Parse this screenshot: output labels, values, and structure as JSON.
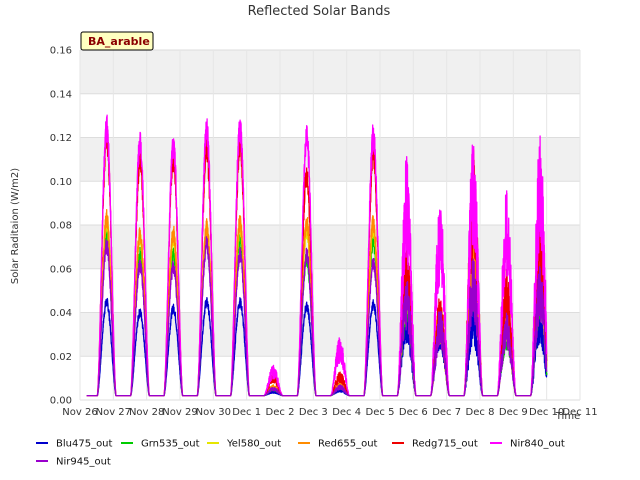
{
  "chart_data": {
    "type": "line",
    "title": "Reflected Solar Bands",
    "ylabel": "Solar Raditaion (W/m2)",
    "xlabel": "Time",
    "site_label": "BA_arable",
    "xlim": [
      0,
      15
    ],
    "ylim": [
      0,
      0.16
    ],
    "yticks": [
      0.0,
      0.02,
      0.04,
      0.06,
      0.08,
      0.1,
      0.12,
      0.14,
      0.16
    ],
    "xtick_labels": [
      "Nov 26",
      "Nov 27",
      "Nov 28",
      "Nov 29",
      "Nov 30",
      "Dec 1",
      "Dec 2",
      "Dec 3",
      "Dec 4",
      "Dec 5",
      "Dec 6",
      "Dec 7",
      "Dec 8",
      "Dec 9",
      "Dec 10",
      "Dec 11"
    ],
    "grid": true,
    "legend_position": "bottom",
    "baseline": 0.002,
    "day_centers": [
      0.8,
      1.8,
      2.8,
      3.8,
      4.8,
      5.8,
      6.8,
      7.8,
      8.8,
      9.8,
      10.8,
      11.8,
      12.8,
      13.8
    ],
    "series": [
      {
        "name": "Blu475_out",
        "color": "#0000cc",
        "peaks": [
          0.047,
          0.042,
          0.044,
          0.047,
          0.047,
          0.004,
          0.045,
          0.005,
          0.046,
          0.045,
          0.04,
          0.044,
          0.045,
          0.045
        ]
      },
      {
        "name": "Grn535_out",
        "color": "#00cc00",
        "peaks": [
          0.078,
          0.07,
          0.07,
          0.078,
          0.077,
          0.006,
          0.068,
          0.007,
          0.076,
          0.06,
          0.045,
          0.072,
          0.04,
          0.065
        ]
      },
      {
        "name": "Yel580_out",
        "color": "#e6e600",
        "peaks": [
          0.085,
          0.078,
          0.078,
          0.082,
          0.083,
          0.007,
          0.082,
          0.008,
          0.082,
          0.068,
          0.045,
          0.078,
          0.045,
          0.075
        ]
      },
      {
        "name": "Red655_out",
        "color": "#ff8c00",
        "peaks": [
          0.087,
          0.08,
          0.08,
          0.083,
          0.085,
          0.007,
          0.085,
          0.008,
          0.085,
          0.07,
          0.047,
          0.078,
          0.046,
          0.078
        ]
      },
      {
        "name": "Redg715_out",
        "color": "#ee0000",
        "peaks": [
          0.125,
          0.115,
          0.115,
          0.12,
          0.122,
          0.012,
          0.108,
          0.013,
          0.118,
          0.072,
          0.048,
          0.115,
          0.06,
          0.092
        ]
      },
      {
        "name": "Nir840_out",
        "color": "#ff00ff",
        "peaks": [
          0.131,
          0.123,
          0.122,
          0.129,
          0.13,
          0.016,
          0.127,
          0.029,
          0.127,
          0.112,
          0.092,
          0.121,
          0.098,
          0.122
        ]
      },
      {
        "name": "Nir945_out",
        "color": "#9900cc",
        "peaks": [
          0.074,
          0.065,
          0.064,
          0.075,
          0.07,
          0.006,
          0.07,
          0.007,
          0.066,
          0.055,
          0.042,
          0.065,
          0.04,
          0.062
        ]
      }
    ]
  }
}
